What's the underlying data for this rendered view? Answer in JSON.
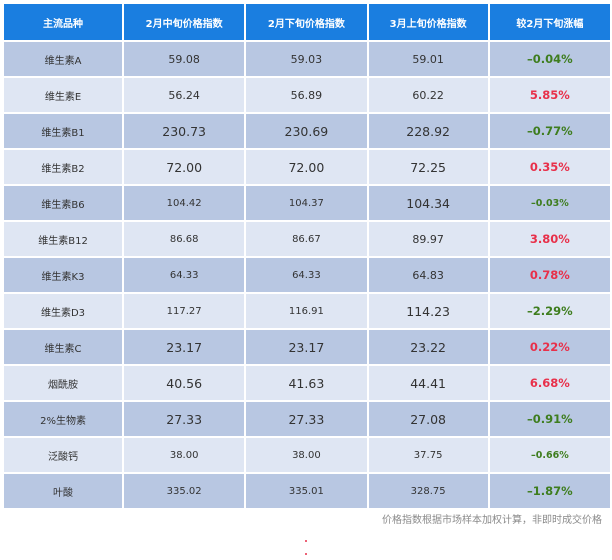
{
  "table": {
    "headers": [
      "主流品种",
      "2月中旬价格指数",
      "2月下旬价格指数",
      "3月上旬价格指数",
      "较2月下旬涨幅"
    ],
    "rows": [
      {
        "name": "维生素A",
        "c1": "59.08",
        "c2": "59.03",
        "c3": "59.01",
        "chg": "–0.04%",
        "dir": "neg"
      },
      {
        "name": "维生素E",
        "c1": "56.24",
        "c2": "56.89",
        "c3": "60.22",
        "chg": "5.85%",
        "dir": "pos"
      },
      {
        "name": "维生素B1",
        "c1": "230.73",
        "c2": "230.69",
        "c3": "228.92",
        "chg": "–0.77%",
        "dir": "neg"
      },
      {
        "name": "维生素B2",
        "c1": "72.00",
        "c2": "72.00",
        "c3": "72.25",
        "chg": "0.35%",
        "dir": "pos"
      },
      {
        "name": "维生素B6",
        "c1": "104.42",
        "c2": "104.37",
        "c3": "104.34",
        "chg": "–0.03%",
        "dir": "neg"
      },
      {
        "name": "维生素B12",
        "c1": "86.68",
        "c2": "86.67",
        "c3": "89.97",
        "chg": "3.80%",
        "dir": "pos"
      },
      {
        "name": "维生素K3",
        "c1": "64.33",
        "c2": "64.33",
        "c3": "64.83",
        "chg": "0.78%",
        "dir": "pos"
      },
      {
        "name": "维生素D3",
        "c1": "117.27",
        "c2": "116.91",
        "c3": "114.23",
        "chg": "–2.29%",
        "dir": "neg"
      },
      {
        "name": "维生素C",
        "c1": "23.17",
        "c2": "23.17",
        "c3": "23.22",
        "chg": "0.22%",
        "dir": "pos"
      },
      {
        "name": "烟酰胺",
        "c1": "40.56",
        "c2": "41.63",
        "c3": "44.41",
        "chg": "6.68%",
        "dir": "pos"
      },
      {
        "name": "2%生物素",
        "c1": "27.33",
        "c2": "27.33",
        "c3": "27.08",
        "chg": "–0.91%",
        "dir": "neg"
      },
      {
        "name": "泛酸钙",
        "c1": "38.00",
        "c2": "38.00",
        "c3": "37.75",
        "chg": "–0.66%",
        "dir": "neg"
      },
      {
        "name": "叶酸",
        "c1": "335.02",
        "c2": "335.01",
        "c3": "328.75",
        "chg": "–1.87%",
        "dir": "neg"
      }
    ]
  },
  "footnote": "价格指数根据市场样本加权计算，非即时成交价格",
  "colors": {
    "header_bg": "#1a7ee0",
    "row_dark": "#b8c7e2",
    "row_light": "#dfe6f3",
    "negative": "#3e7d1e",
    "positive": "#e8304a"
  }
}
